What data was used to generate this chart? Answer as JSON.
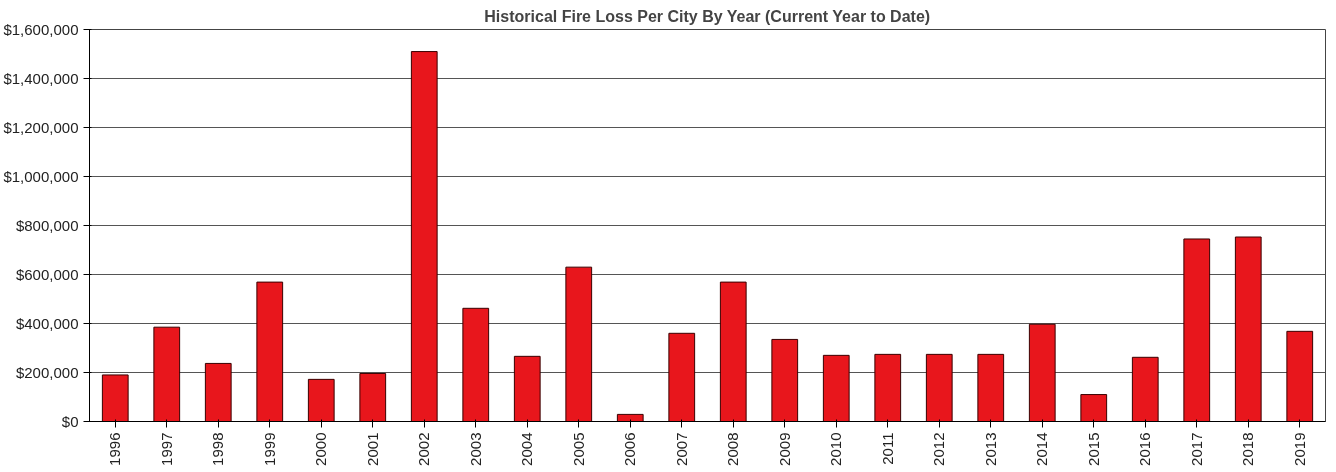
{
  "chart_data": {
    "type": "bar",
    "title": "Historical Fire Loss Per City By Year (Current Year to Date)",
    "categories": [
      "1996",
      "1997",
      "1998",
      "1999",
      "2000",
      "2001",
      "2002",
      "2003",
      "2004",
      "2005",
      "2006",
      "2007",
      "2008",
      "2009",
      "2010",
      "2011",
      "2012",
      "2013",
      "2014",
      "2015",
      "2016",
      "2017",
      "2018",
      "2019"
    ],
    "values": [
      190000,
      385000,
      237000,
      569000,
      172000,
      196000,
      1510000,
      462000,
      266000,
      630000,
      29000,
      360000,
      569000,
      335000,
      270000,
      274000,
      274000,
      274000,
      397000,
      110000,
      262000,
      745000,
      753000,
      368000
    ],
    "color": "#e8161c",
    "ylim": [
      0,
      1600000
    ],
    "yticks": [
      {
        "value": 0,
        "label": "$0"
      },
      {
        "value": 200000,
        "label": "$200,000"
      },
      {
        "value": 400000,
        "label": "$400,000"
      },
      {
        "value": 600000,
        "label": "$600,000"
      },
      {
        "value": 800000,
        "label": "$800,000"
      },
      {
        "value": 1000000,
        "label": "$1,000,000"
      },
      {
        "value": 1200000,
        "label": "$1,200,000"
      },
      {
        "value": 1400000,
        "label": "$1,400,000"
      },
      {
        "value": 1600000,
        "label": "$1,600,000"
      }
    ],
    "grid": "y"
  }
}
